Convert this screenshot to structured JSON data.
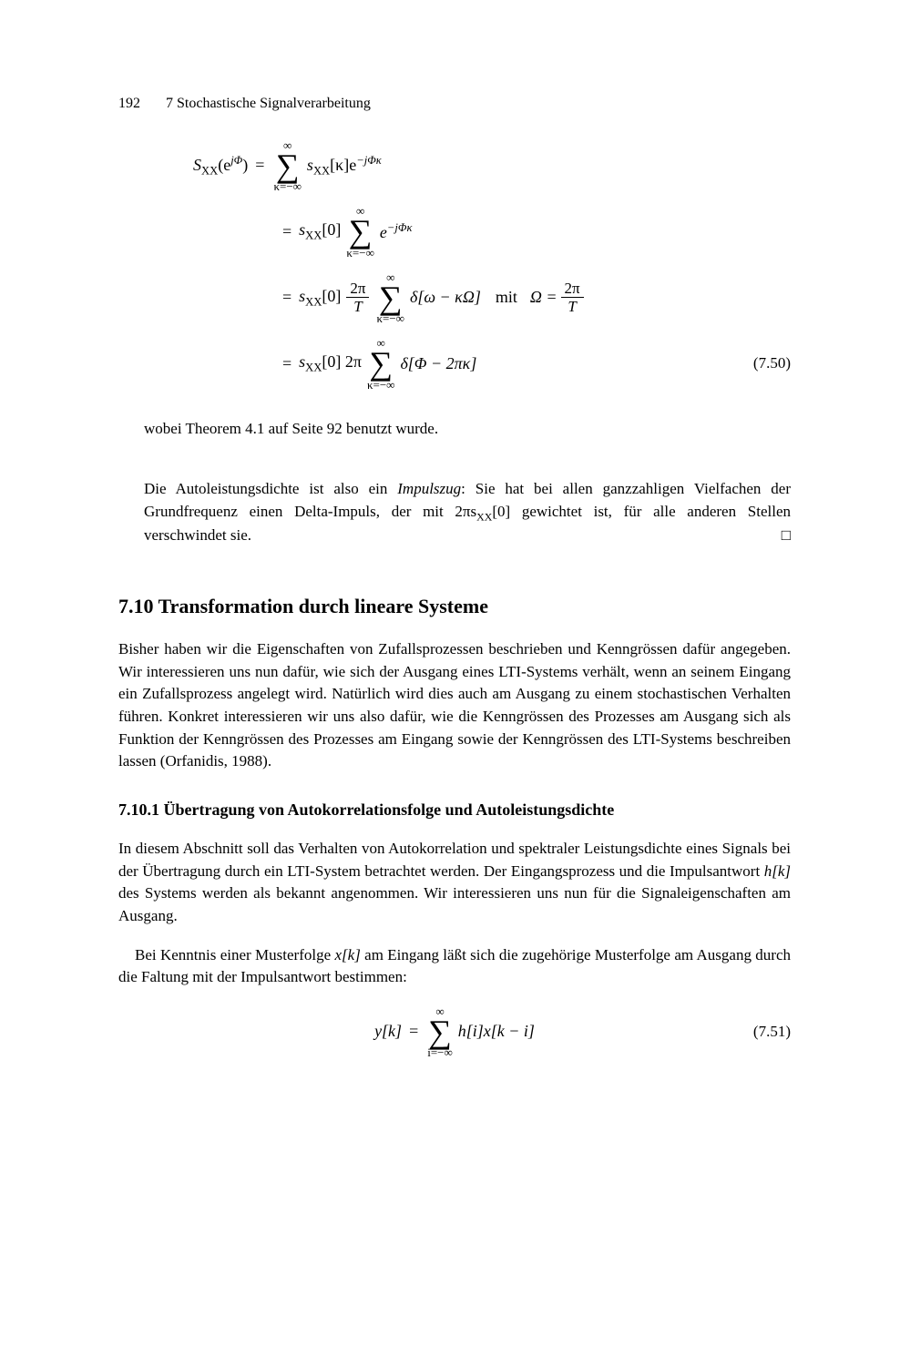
{
  "header": {
    "page_number": "192",
    "chapter": "7 Stochastische Signalverarbeitung"
  },
  "equation_block_1": {
    "line1_lhs": "S",
    "line1_lhs_sub": "XX",
    "line1_lhs_arg": "(e",
    "line1_lhs_sup": "jΦ",
    "line1_lhs_close": ")",
    "line1_sum_top": "∞",
    "line1_sum_bot": "κ=−∞",
    "line1_term": "s",
    "line1_term_sub": "XX",
    "line1_term_arg": "[κ]e",
    "line1_term_sup": "−jΦκ",
    "line2_pre": "s",
    "line2_pre_sub": "XX",
    "line2_pre_arg": "[0]",
    "line2_sum_top": "∞",
    "line2_sum_bot": "κ=−∞",
    "line2_term": "e",
    "line2_term_sup": "−jΦκ",
    "line3_pre": "s",
    "line3_pre_sub": "XX",
    "line3_pre_arg": "[0]",
    "line3_frac_num": "2π",
    "line3_frac_den": "T",
    "line3_sum_top": "∞",
    "line3_sum_bot": "κ=−∞",
    "line3_delta": "δ[ω − κΩ]",
    "line3_mit": "mit",
    "line3_omega": "Ω =",
    "line3_frac2_num": "2π",
    "line3_frac2_den": "T",
    "line4_pre": "s",
    "line4_pre_sub": "XX",
    "line4_pre_arg": "[0] 2π",
    "line4_sum_top": "∞",
    "line4_sum_bot": "κ=−∞",
    "line4_delta": "δ[Φ − 2πκ]",
    "eq_number": "(7.50)"
  },
  "para1": "wobei Theorem 4.1 auf Seite 92 benutzt wurde.",
  "para2_a": "Die Autoleistungsdichte ist also ein ",
  "para2_ital": "Impulszug",
  "para2_b": ": Sie hat bei allen ganzzahligen Vielfachen der Grundfrequenz einen Delta-Impuls, der mit 2πs",
  "para2_sub": "XX",
  "para2_c": "[0] gewichtet ist, für alle anderen Stellen verschwindet sie.",
  "para2_qed": "□",
  "section_title": "7.10 Transformation durch lineare Systeme",
  "para3": "Bisher haben wir die Eigenschaften von Zufallsprozessen beschrieben und Kenngrössen dafür angegeben. Wir interessieren uns nun dafür, wie sich der Ausgang eines LTI-Systems verhält, wenn an seinem Eingang ein Zufallsprozess angelegt wird. Natürlich wird dies auch am Ausgang zu einem stochastischen Verhalten führen. Konkret interessieren wir uns also dafür, wie die Kenngrössen des Prozesses am Ausgang sich als Funktion der Kenngrössen des Prozesses am Eingang sowie der Kenngrössen des LTI-Systems beschreiben lassen (Orfanidis, 1988).",
  "subsection_title": "7.10.1 Übertragung von Autokorrelationsfolge und Autoleistungsdichte",
  "para4_a": "In diesem Abschnitt soll das Verhalten von Autokorrelation und spektraler Leistungsdichte eines Signals bei der Übertragung durch ein LTI-System betrachtet werden. Der Eingangsprozess und die Impulsantwort ",
  "para4_hk": "h[k]",
  "para4_b": " des Systems werden als bekannt angenommen. Wir interessieren uns nun für die Signaleigenschaften am Ausgang.",
  "para5_a": "Bei Kenntnis einer Musterfolge ",
  "para5_xk": "x[k]",
  "para5_b": " am Eingang läßt sich die zugehörige Musterfolge am Ausgang durch die Faltung mit der Impulsantwort bestimmen:",
  "equation_block_2": {
    "lhs": "y[k]",
    "sum_top": "∞",
    "sum_bot": "i=−∞",
    "term": "h[i]x[k − i]",
    "eq_number": "(7.51)"
  }
}
